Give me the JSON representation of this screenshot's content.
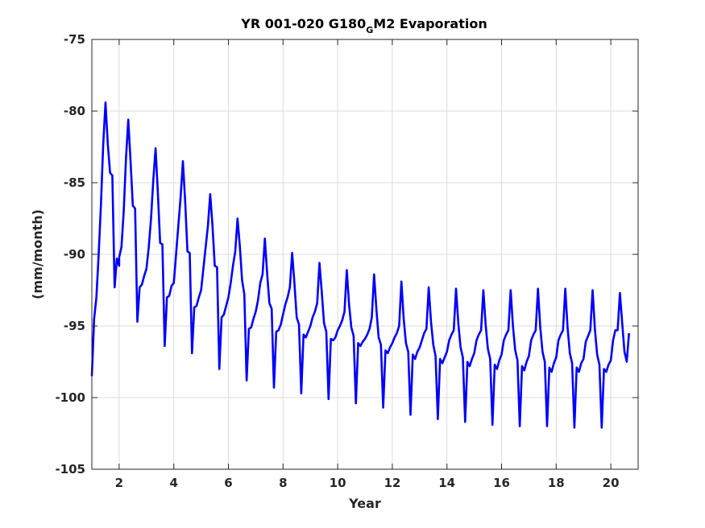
{
  "chart_data": {
    "type": "line",
    "title_main": "YR 001-020 G180",
    "title_sub": "G",
    "title_rest": "M2 Evaporation",
    "xlabel": "Year",
    "ylabel": "(mm/month)",
    "xlim": [
      1,
      21
    ],
    "ylim": [
      -105,
      -75
    ],
    "xticks": [
      2,
      4,
      6,
      8,
      10,
      12,
      14,
      16,
      18,
      20
    ],
    "yticks": [
      -105,
      -100,
      -95,
      -90,
      -85,
      -80,
      -75
    ],
    "grid": true,
    "box": true,
    "series": [
      {
        "color": "#0000ff",
        "cycles": [
          {
            "start": 1.0,
            "values": [
              -98.5,
              -94.5,
              -93.0,
              -90.0,
              -86.5,
              -82.3,
              -79.4,
              -82.3,
              -84.3,
              -84.5,
              -92.3,
              -90.3,
              -90.8
            ]
          },
          {
            "start": 2.0,
            "values": [
              -90.2,
              -89.5,
              -87.0,
              -83.3,
              -80.6,
              -83.5,
              -86.6,
              -86.8,
              -94.7,
              -92.3,
              -92.1,
              -91.5
            ]
          },
          {
            "start": 3.0,
            "values": [
              -91.0,
              -89.5,
              -87.5,
              -84.8,
              -82.6,
              -85.7,
              -89.2,
              -89.3,
              -96.4,
              -93.0,
              -92.9,
              -92.2
            ]
          },
          {
            "start": 4.0,
            "values": [
              -92.0,
              -90.0,
              -88.0,
              -86.0,
              -83.5,
              -86.3,
              -89.8,
              -89.9,
              -96.9,
              -93.7,
              -93.6,
              -93.0
            ]
          },
          {
            "start": 5.0,
            "values": [
              -92.5,
              -91.0,
              -89.5,
              -88.0,
              -85.8,
              -88.0,
              -90.8,
              -90.9,
              -98.0,
              -94.4,
              -94.2,
              -93.6
            ]
          },
          {
            "start": 6.0,
            "values": [
              -93.0,
              -92.0,
              -90.8,
              -89.8,
              -87.5,
              -89.4,
              -91.8,
              -92.8,
              -98.8,
              -95.2,
              -95.1,
              -94.5
            ]
          },
          {
            "start": 7.0,
            "values": [
              -94.0,
              -93.2,
              -92.0,
              -91.4,
              -88.9,
              -91.3,
              -93.4,
              -93.8,
              -99.3,
              -95.4,
              -95.3,
              -94.9
            ]
          },
          {
            "start": 8.0,
            "values": [
              -94.2,
              -93.5,
              -93.0,
              -92.3,
              -89.9,
              -92.0,
              -94.4,
              -94.9,
              -99.7,
              -95.6,
              -95.8,
              -95.4
            ]
          },
          {
            "start": 9.0,
            "values": [
              -95.0,
              -94.4,
              -94.0,
              -93.4,
              -90.6,
              -92.6,
              -94.8,
              -95.4,
              -100.1,
              -95.9,
              -96.0,
              -95.8
            ]
          },
          {
            "start": 10.0,
            "values": [
              -95.3,
              -95.0,
              -94.6,
              -94.0,
              -91.1,
              -93.5,
              -95.1,
              -95.7,
              -100.4,
              -96.2,
              -96.4,
              -96.1
            ]
          },
          {
            "start": 11.0,
            "values": [
              -95.9,
              -95.6,
              -95.2,
              -94.4,
              -91.4,
              -93.8,
              -95.8,
              -96.3,
              -100.7,
              -96.7,
              -96.9,
              -96.5
            ]
          },
          {
            "start": 12.0,
            "values": [
              -96.2,
              -95.8,
              -95.5,
              -95.0,
              -91.9,
              -94.5,
              -96.2,
              -96.8,
              -101.2,
              -97.0,
              -97.3,
              -96.8
            ]
          },
          {
            "start": 13.0,
            "values": [
              -96.5,
              -96.0,
              -95.5,
              -95.2,
              -92.3,
              -94.7,
              -96.3,
              -97.1,
              -101.5,
              -97.3,
              -97.6,
              -97.2
            ]
          },
          {
            "start": 14.0,
            "values": [
              -96.8,
              -96.0,
              -95.6,
              -95.3,
              -92.4,
              -94.8,
              -96.5,
              -97.2,
              -101.7,
              -97.5,
              -97.8,
              -97.3
            ]
          },
          {
            "start": 15.0,
            "values": [
              -96.9,
              -96.0,
              -95.6,
              -95.3,
              -92.5,
              -94.9,
              -96.6,
              -97.3,
              -101.9,
              -97.7,
              -98.0,
              -97.4
            ]
          },
          {
            "start": 16.0,
            "values": [
              -97.0,
              -96.0,
              -95.6,
              -95.3,
              -92.5,
              -95.0,
              -96.7,
              -97.4,
              -102.0,
              -97.8,
              -98.1,
              -97.5
            ]
          },
          {
            "start": 17.0,
            "values": [
              -97.1,
              -96.0,
              -95.6,
              -95.3,
              -92.4,
              -95.1,
              -96.8,
              -97.5,
              -102.0,
              -97.9,
              -98.2,
              -97.6
            ]
          },
          {
            "start": 18.0,
            "values": [
              -97.2,
              -96.0,
              -95.6,
              -95.3,
              -92.4,
              -95.1,
              -96.9,
              -97.6,
              -102.1,
              -97.9,
              -98.2,
              -97.6
            ]
          },
          {
            "start": 19.0,
            "values": [
              -97.3,
              -96.1,
              -95.7,
              -95.3,
              -92.5,
              -95.2,
              -97.0,
              -97.7,
              -102.1,
              -98.0,
              -98.2,
              -97.7
            ]
          },
          {
            "start": 20.0,
            "values": [
              -97.4,
              -96.0,
              -95.3,
              -95.3,
              -92.7,
              -94.8,
              -96.8,
              -97.5,
              -95.5
            ]
          }
        ]
      }
    ]
  }
}
